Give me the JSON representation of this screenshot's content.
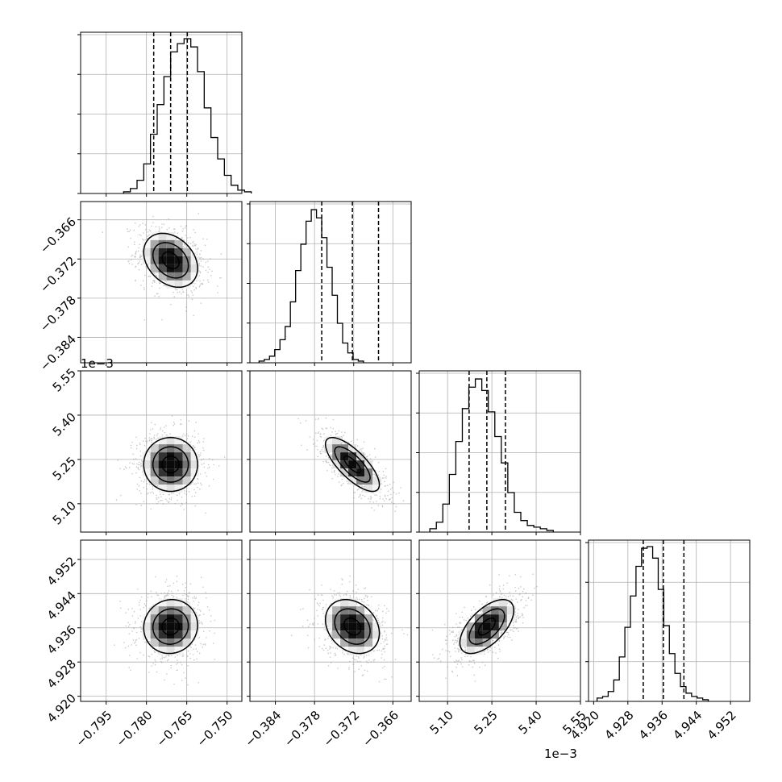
{
  "chart_data": {
    "type": "corner",
    "grid": true,
    "parameters": [
      {
        "index": 0,
        "range": [
          -0.8045,
          -0.7445
        ],
        "ticks": [
          -0.795,
          -0.78,
          -0.765,
          -0.75
        ],
        "tick_labels": [
          "−0.795",
          "−0.780",
          "−0.765",
          "−0.750"
        ],
        "quantiles": [
          -0.7773,
          -0.771,
          -0.7648
        ]
      },
      {
        "index": 1,
        "range": [
          -0.3879,
          -0.3632
        ],
        "ticks": [
          -0.384,
          -0.378,
          -0.372,
          -0.366
        ],
        "tick_labels": [
          "−0.384",
          "−0.378",
          "−0.372",
          "−0.366"
        ],
        "quantiles": [
          -0.3769,
          -0.3722,
          -0.3682
        ]
      },
      {
        "index": 2,
        "range": [
          5.004,
          5.55
        ],
        "ticks": [
          5.1,
          5.25,
          5.4,
          5.55
        ],
        "tick_labels": [
          "5.10",
          "5.25",
          "5.40",
          "5.55"
        ],
        "offset_label": "1e−3",
        "quantiles": [
          5.173,
          5.233,
          5.296
        ]
      },
      {
        "index": 3,
        "range": [
          4.9188,
          4.9565
        ],
        "ticks": [
          4.92,
          4.928,
          4.936,
          4.944,
          4.952
        ],
        "tick_labels": [
          "4.920",
          "4.928",
          "4.936",
          "4.944",
          "4.952"
        ],
        "quantiles": [
          4.9316,
          4.9363,
          4.9411
        ]
      }
    ],
    "diagonal": [
      {
        "param": 0,
        "x0": -0.7885,
        "dx": 0.0025,
        "counts": [
          0.01,
          0.03,
          0.08,
          0.18,
          0.36,
          0.54,
          0.71,
          0.86,
          0.91,
          0.94,
          0.89,
          0.74,
          0.52,
          0.34,
          0.21,
          0.11,
          0.05,
          0.02,
          0.01
        ]
      },
      {
        "param": 1,
        "x0": -0.3865,
        "dx": 0.0008,
        "counts": [
          0.01,
          0.02,
          0.04,
          0.08,
          0.14,
          0.22,
          0.37,
          0.56,
          0.72,
          0.86,
          0.93,
          0.88,
          0.76,
          0.58,
          0.41,
          0.24,
          0.12,
          0.06,
          0.02,
          0.01
        ]
      },
      {
        "param": 2,
        "x0": 5.04,
        "dx": 0.022,
        "counts": [
          0.02,
          0.06,
          0.17,
          0.35,
          0.55,
          0.75,
          0.88,
          0.93,
          0.86,
          0.73,
          0.58,
          0.42,
          0.24,
          0.12,
          0.07,
          0.04,
          0.03,
          0.02,
          0.01
        ]
      },
      {
        "param": 3,
        "x0": 4.9208,
        "dx": 0.0013,
        "counts": [
          0.02,
          0.03,
          0.06,
          0.13,
          0.27,
          0.45,
          0.64,
          0.82,
          0.93,
          0.94,
          0.87,
          0.68,
          0.46,
          0.29,
          0.17,
          0.09,
          0.05,
          0.03,
          0.02,
          0.01
        ]
      }
    ],
    "pairs": [
      {
        "x_param": 0,
        "y_param": 1,
        "rho": -0.3,
        "center": [
          -0.771,
          -0.3722
        ]
      },
      {
        "x_param": 0,
        "y_param": 2,
        "rho": 0.0,
        "center": [
          -0.771,
          5.233
        ]
      },
      {
        "x_param": 1,
        "y_param": 2,
        "rho": -0.75,
        "center": [
          -0.3722,
          5.233
        ]
      },
      {
        "x_param": 0,
        "y_param": 3,
        "rho": 0.05,
        "center": [
          -0.771,
          4.9363
        ]
      },
      {
        "x_param": 1,
        "y_param": 3,
        "rho": -0.25,
        "center": [
          -0.3722,
          4.9363
        ]
      },
      {
        "x_param": 2,
        "y_param": 3,
        "rho": 0.6,
        "center": [
          5.233,
          4.9363
        ]
      }
    ]
  }
}
